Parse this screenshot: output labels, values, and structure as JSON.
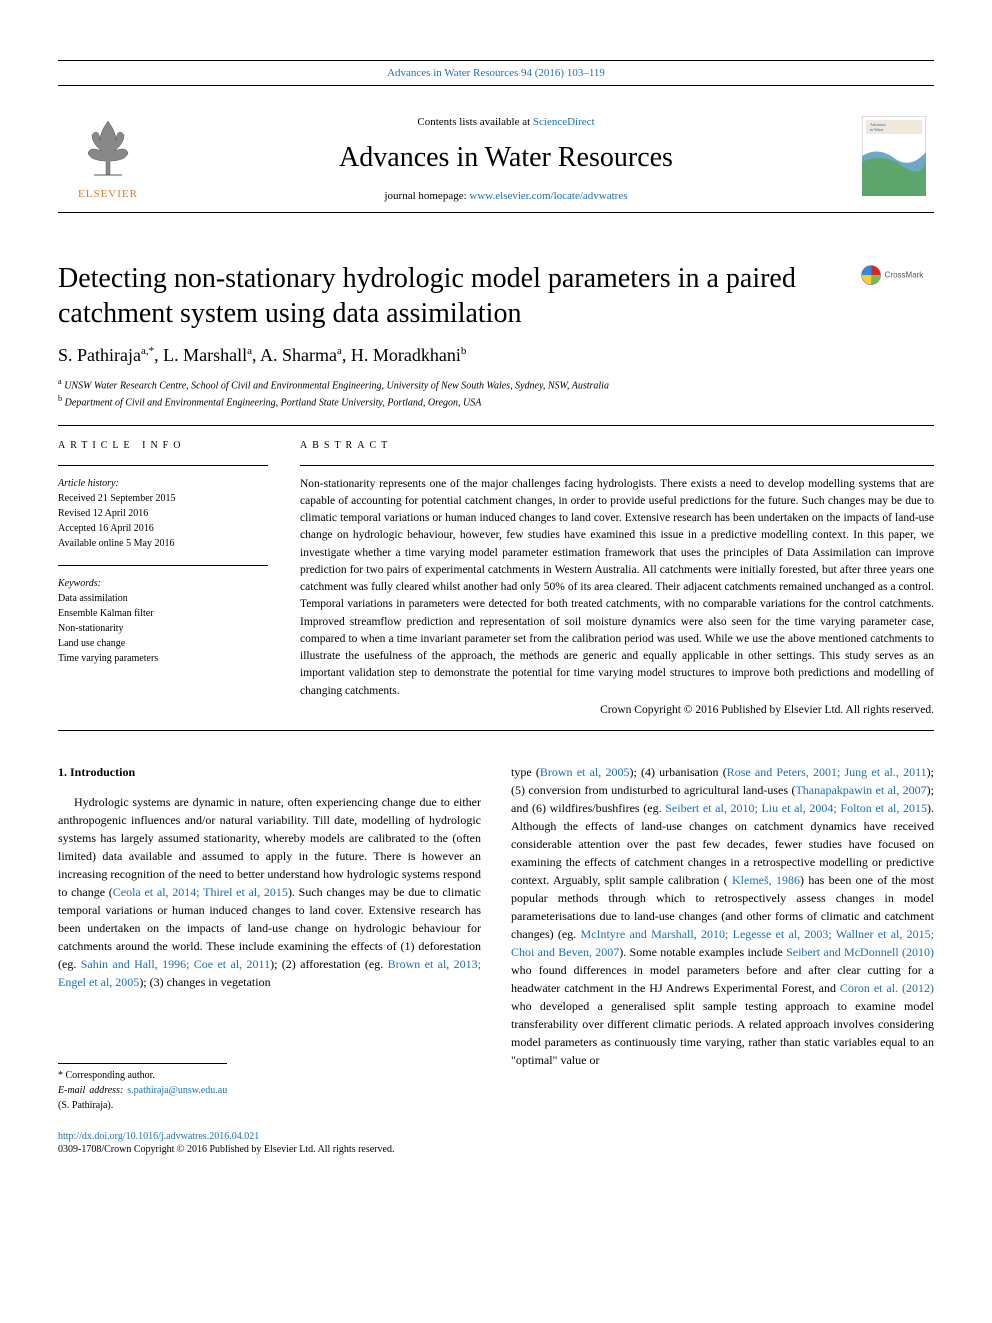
{
  "header": {
    "journal_ref": "Advances in Water Resources 94 (2016) 103–119",
    "contents_line_prefix": "Contents lists available at ",
    "contents_link": "ScienceDirect",
    "journal_name": "Advances in Water Resources",
    "homepage_prefix": "journal homepage: ",
    "homepage_url": "www.elsevier.com/locate/advwatres",
    "elsevier": "ELSEVIER"
  },
  "paper": {
    "title": "Detecting non-stationary hydrologic model parameters in a paired catchment system using data assimilation",
    "authors_html": "S. Pathiraja<sup>a,*</sup>, L. Marshall<sup>a</sup>, A. Sharma<sup>a</sup>, H. Moradkhani<sup>b</sup>",
    "affiliations": [
      {
        "sup": "a",
        "text": "UNSW Water Research Centre, School of Civil and Environmental Engineering, University of New South Wales, Sydney, NSW, Australia"
      },
      {
        "sup": "b",
        "text": "Department of Civil and Environmental Engineering, Portland State University, Portland, Oregon, USA"
      }
    ]
  },
  "article_info": {
    "label": "article info",
    "history_head": "Article history:",
    "history": [
      "Received 21 September 2015",
      "Revised 12 April 2016",
      "Accepted 16 April 2016",
      "Available online 5 May 2016"
    ],
    "keywords_head": "Keywords:",
    "keywords": [
      "Data assimilation",
      "Ensemble Kalman filter",
      "Non-stationarity",
      "Land use change",
      "Time varying parameters"
    ]
  },
  "abstract": {
    "label": "abstract",
    "text": "Non-stationarity represents one of the major challenges facing hydrologists. There exists a need to develop modelling systems that are capable of accounting for potential catchment changes, in order to provide useful predictions for the future. Such changes may be due to climatic temporal variations or human induced changes to land cover. Extensive research has been undertaken on the impacts of land-use change on hydrologic behaviour, however, few studies have examined this issue in a predictive modelling context. In this paper, we investigate whether a time varying model parameter estimation framework that uses the principles of Data Assimilation can improve prediction for two pairs of experimental catchments in Western Australia. All catchments were initially forested, but after three years one catchment was fully cleared whilst another had only 50% of its area cleared. Their adjacent catchments remained unchanged as a control. Temporal variations in parameters were detected for both treated catchments, with no comparable variations for the control catchments. Improved streamflow prediction and representation of soil moisture dynamics were also seen for the time varying parameter case, compared to when a time invariant parameter set from the calibration period was used. While we use the above mentioned catchments to illustrate the usefulness of the approach, the methods are generic and equally applicable in other settings. This study serves as an important validation step to demonstrate the potential for time varying model structures to improve both predictions and modelling of changing catchments.",
    "copyright": "Crown Copyright © 2016 Published by Elsevier Ltd. All rights reserved."
  },
  "body": {
    "section_heading": "1. Introduction",
    "col1": "Hydrologic systems are dynamic in nature, often experiencing change due to either anthropogenic influences and/or natural variability. Till date, modelling of hydrologic systems has largely assumed stationarity, whereby models are calibrated to the (often limited) data available and assumed to apply in the future. There is however an increasing recognition of the need to better understand how hydrologic systems respond to change (<a class=\"ref\" href=\"#\">Ceola et al, 2014; Thirel et al, 2015</a>). Such changes may be due to climatic temporal variations or human induced changes to land cover. Extensive research has been undertaken on the impacts of land-use change on hydrologic behaviour for catchments around the world. These include examining the effects of (1) deforestation (eg. <a class=\"ref\" href=\"#\">Sahin and Hall, 1996; Coe et al, 2011</a>); (2) afforestation (eg. <a class=\"ref\" href=\"#\">Brown et al, 2013; Engel et al, 2005</a>); (3) changes in vegetation",
    "col2": "type (<a class=\"ref\" href=\"#\">Brown et al, 2005</a>); (4) urbanisation (<a class=\"ref\" href=\"#\">Rose and Peters, 2001; Jung et al., 2011</a>); (5) conversion from undisturbed to agricultural land-uses (<a class=\"ref\" href=\"#\">Thanapakpawin et al, 2007</a>); and (6) wildfires/bushfires (eg. <a class=\"ref\" href=\"#\">Seibert et al, 2010; Liu et al, 2004; Folton et al, 2015</a>). Although the effects of land-use changes on catchment dynamics have received considerable attention over the past few decades, fewer studies have focused on examining the effects of catchment changes in a retrospective modelling or predictive context. Arguably, split sample calibration ( <a class=\"ref\" href=\"#\">Klemeš, 1986</a>) has been one of the most popular methods through which to retrospectively assess changes in model parameterisations due to land-use changes (and other forms of climatic and catchment changes) (eg. <a class=\"ref\" href=\"#\">McIntyre and Marshall, 2010; Legesse et al, 2003; Wallner et al, 2015; Choi and Beven, 2007</a>). Some notable examples include <a class=\"ref\" href=\"#\">Seibert and McDonnell (2010)</a> who found differences in model parameters before and after clear cutting for a headwater catchment in the HJ Andrews Experimental Forest, and <a class=\"ref\" href=\"#\">Coron et al. (2012)</a> who developed a generalised split sample testing approach to examine model transferability over different climatic periods. A related approach involves considering model parameters as continuously time varying, rather than static variables equal to an \"optimal\" value or"
  },
  "footer": {
    "corr_label": "* Corresponding author.",
    "email_label": "E-mail address: ",
    "email": "s.pathiraja@unsw.edu.au",
    "email_suffix": " (S. Pathiraja).",
    "doi": "http://dx.doi.org/10.1016/j.advwatres.2016.04.021",
    "issn": "0309-1708/Crown Copyright © 2016 Published by Elsevier Ltd. All rights reserved."
  },
  "crossmark_label": "CrossMark",
  "colors": {
    "link": "#1a6fb5",
    "elsevier_orange": "#e87722",
    "text": "#000000",
    "background": "#ffffff",
    "cover_blue": "#6fa7c7",
    "cover_green": "#5aa55a"
  },
  "typography": {
    "body_font": "Times New Roman",
    "journal_name_fontsize": 28,
    "title_fontsize": 28,
    "authors_fontsize": 18,
    "abstract_fontsize": 11.5,
    "body_fontsize": 12,
    "meta_fontsize": 10,
    "affil_fontsize": 10,
    "small_fontsize": 10
  }
}
